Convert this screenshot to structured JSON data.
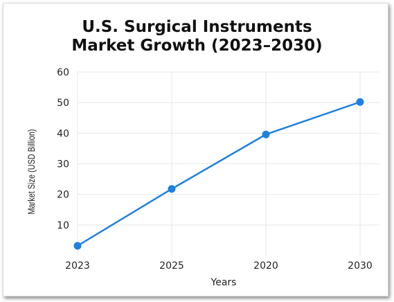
{
  "chart_data": {
    "type": "line",
    "title_line1": "U.S. Surgical Instruments",
    "title_line2": "Market Growth (2023–2030)",
    "xlabel": "Years",
    "ylabel": "Market Size (USD Billion)",
    "categories": [
      "2023",
      "2025",
      "2020",
      "2030"
    ],
    "series": [
      {
        "values": [
          3.2,
          21.8,
          39.6,
          50.2
        ]
      }
    ],
    "yticks": [
      10,
      20,
      30,
      40,
      50,
      60
    ],
    "ylim": [
      0,
      60
    ],
    "grid": true,
    "line_color": "#1f80dd"
  }
}
